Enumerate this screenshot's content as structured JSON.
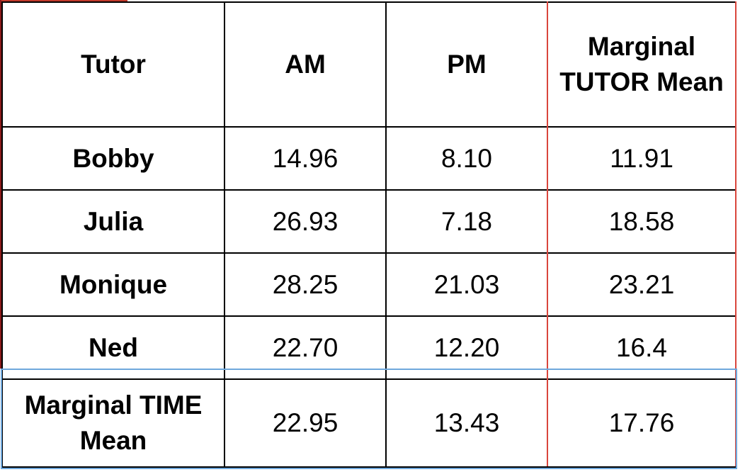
{
  "table": {
    "headers": [
      "Tutor",
      "AM",
      "PM",
      "Marginal TUTOR Mean"
    ],
    "rows": [
      {
        "tutor": "Bobby",
        "am": "14.96",
        "pm": "8.10",
        "marginal": "11.91"
      },
      {
        "tutor": "Julia",
        "am": "26.93",
        "pm": "7.18",
        "marginal": "18.58"
      },
      {
        "tutor": "Monique",
        "am": "28.25",
        "pm": "21.03",
        "marginal": "23.21"
      },
      {
        "tutor": "Ned",
        "am": "22.70",
        "pm": "12.20",
        "marginal": "16.4"
      }
    ],
    "footer": {
      "label": "Marginal TIME Mean",
      "am": "22.95",
      "pm": "13.43",
      "marginal": "17.76"
    }
  },
  "colors": {
    "column_highlight": "#d9453c",
    "row_highlight": "#6fa8dc",
    "border": "#000000"
  }
}
